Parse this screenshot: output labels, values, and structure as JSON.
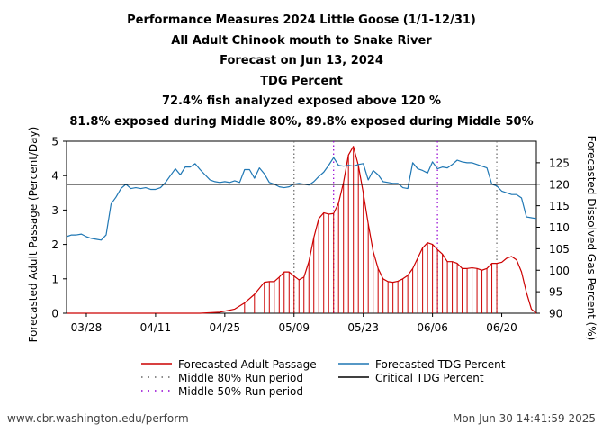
{
  "titles": [
    "Performance Measures 2024 Little Goose (1/1-12/31)",
    "All Adult Chinook mouth to Snake River",
    "Forecast on Jun 13, 2024",
    "TDG Percent",
    "72.4% fish analyzed exposed above 120 %",
    "81.8% exposed during Middle 80%, 89.8% exposed during Middle 50%"
  ],
  "footer": {
    "left": "www.cbr.washington.edu/perform",
    "right": "Mon Jun 30 14:41:59 2025"
  },
  "chart_data": {
    "type": "line",
    "date_range": [
      "2024-03-24",
      "2024-06-27"
    ],
    "x_ticks": [
      {
        "date": "2024-03-28",
        "label": "03/28"
      },
      {
        "date": "2024-04-11",
        "label": "04/11"
      },
      {
        "date": "2024-04-25",
        "label": "04/25"
      },
      {
        "date": "2024-05-09",
        "label": "05/09"
      },
      {
        "date": "2024-05-23",
        "label": "05/23"
      },
      {
        "date": "2024-06-06",
        "label": "06/06"
      },
      {
        "date": "2024-06-20",
        "label": "06/20"
      }
    ],
    "y_left": {
      "label": "Forecasted Adult Passage (Percent/Day)",
      "ylim": [
        0,
        5
      ],
      "ticks": [
        0,
        1,
        2,
        3,
        4,
        5
      ]
    },
    "y_right": {
      "label": "Forecasted Dissolved Gas Percent (%)",
      "ylim": [
        90,
        130
      ],
      "ticks": [
        90,
        95,
        100,
        105,
        110,
        115,
        120,
        125
      ]
    },
    "critical_tdg": 120,
    "middle_80_dates": [
      "2024-05-09",
      "2024-06-19"
    ],
    "middle_50_dates": [
      "2024-05-17",
      "2024-06-07"
    ],
    "series": [
      {
        "name": "Forecasted Adult Passage",
        "axis": "left",
        "color": "#cc0000",
        "points": [
          [
            "2024-03-24",
            0
          ],
          [
            "2024-04-20",
            0
          ],
          [
            "2024-04-24",
            0.03
          ],
          [
            "2024-04-27",
            0.12
          ],
          [
            "2024-04-29",
            0.3
          ],
          [
            "2024-05-01",
            0.55
          ],
          [
            "2024-05-03",
            0.9
          ],
          [
            "2024-05-04",
            0.92
          ],
          [
            "2024-05-05",
            0.92
          ],
          [
            "2024-05-06",
            1.05
          ],
          [
            "2024-05-07",
            1.2
          ],
          [
            "2024-05-08",
            1.2
          ],
          [
            "2024-05-09",
            1.08
          ],
          [
            "2024-05-10",
            0.97
          ],
          [
            "2024-05-11",
            1.05
          ],
          [
            "2024-05-12",
            1.5
          ],
          [
            "2024-05-13",
            2.2
          ],
          [
            "2024-05-14",
            2.75
          ],
          [
            "2024-05-15",
            2.92
          ],
          [
            "2024-05-16",
            2.88
          ],
          [
            "2024-05-17",
            2.9
          ],
          [
            "2024-05-18",
            3.2
          ],
          [
            "2024-05-19",
            3.8
          ],
          [
            "2024-05-20",
            4.6
          ],
          [
            "2024-05-21",
            4.85
          ],
          [
            "2024-05-22",
            4.3
          ],
          [
            "2024-05-23",
            3.5
          ],
          [
            "2024-05-24",
            2.6
          ],
          [
            "2024-05-25",
            1.8
          ],
          [
            "2024-05-26",
            1.3
          ],
          [
            "2024-05-27",
            1.0
          ],
          [
            "2024-05-28",
            0.92
          ],
          [
            "2024-05-29",
            0.9
          ],
          [
            "2024-05-30",
            0.93
          ],
          [
            "2024-05-31",
            1.0
          ],
          [
            "2024-06-01",
            1.1
          ],
          [
            "2024-06-02",
            1.3
          ],
          [
            "2024-06-03",
            1.6
          ],
          [
            "2024-06-04",
            1.9
          ],
          [
            "2024-06-05",
            2.05
          ],
          [
            "2024-06-06",
            2.0
          ],
          [
            "2024-06-07",
            1.85
          ],
          [
            "2024-06-08",
            1.72
          ],
          [
            "2024-06-09",
            1.5
          ],
          [
            "2024-06-10",
            1.5
          ],
          [
            "2024-06-11",
            1.45
          ],
          [
            "2024-06-12",
            1.3
          ],
          [
            "2024-06-13",
            1.3
          ],
          [
            "2024-06-14",
            1.32
          ],
          [
            "2024-06-15",
            1.3
          ],
          [
            "2024-06-16",
            1.25
          ],
          [
            "2024-06-17",
            1.3
          ],
          [
            "2024-06-18",
            1.45
          ],
          [
            "2024-06-19",
            1.45
          ],
          [
            "2024-06-20",
            1.48
          ],
          [
            "2024-06-21",
            1.6
          ],
          [
            "2024-06-22",
            1.65
          ],
          [
            "2024-06-23",
            1.55
          ],
          [
            "2024-06-24",
            1.2
          ],
          [
            "2024-06-25",
            0.6
          ],
          [
            "2024-06-26",
            0.12
          ],
          [
            "2024-06-27",
            0.0
          ]
        ]
      },
      {
        "name": "Forecasted TDG Percent",
        "axis": "right",
        "color": "#1f77b4",
        "points": [
          [
            "2024-03-24",
            107.8
          ],
          [
            "2024-03-25",
            108.2
          ],
          [
            "2024-03-26",
            108.2
          ],
          [
            "2024-03-27",
            108.4
          ],
          [
            "2024-03-28",
            107.8
          ],
          [
            "2024-03-29",
            107.4
          ],
          [
            "2024-03-30",
            107.2
          ],
          [
            "2024-03-31",
            107.0
          ],
          [
            "2024-04-01",
            108.2
          ],
          [
            "2024-04-02",
            115.4
          ],
          [
            "2024-04-03",
            117.0
          ],
          [
            "2024-04-04",
            119.0
          ],
          [
            "2024-04-05",
            120.0
          ],
          [
            "2024-04-06",
            119.0
          ],
          [
            "2024-04-07",
            119.2
          ],
          [
            "2024-04-08",
            119.0
          ],
          [
            "2024-04-09",
            119.2
          ],
          [
            "2024-04-10",
            118.8
          ],
          [
            "2024-04-11",
            118.8
          ],
          [
            "2024-04-12",
            119.2
          ],
          [
            "2024-04-13",
            120.4
          ],
          [
            "2024-04-14",
            122.0
          ],
          [
            "2024-04-15",
            123.6
          ],
          [
            "2024-04-16",
            122.2
          ],
          [
            "2024-04-17",
            124.0
          ],
          [
            "2024-04-18",
            124.0
          ],
          [
            "2024-04-19",
            124.8
          ],
          [
            "2024-04-20",
            123.4
          ],
          [
            "2024-04-21",
            122.2
          ],
          [
            "2024-04-22",
            121.0
          ],
          [
            "2024-04-23",
            120.6
          ],
          [
            "2024-04-24",
            120.4
          ],
          [
            "2024-04-25",
            120.6
          ],
          [
            "2024-04-26",
            120.4
          ],
          [
            "2024-04-27",
            120.8
          ],
          [
            "2024-04-28",
            120.4
          ],
          [
            "2024-04-29",
            123.4
          ],
          [
            "2024-04-30",
            123.4
          ],
          [
            "2024-05-01",
            121.4
          ],
          [
            "2024-05-02",
            123.8
          ],
          [
            "2024-05-03",
            122.4
          ],
          [
            "2024-05-04",
            120.4
          ],
          [
            "2024-05-05",
            120.0
          ],
          [
            "2024-05-06",
            119.4
          ],
          [
            "2024-05-07",
            119.2
          ],
          [
            "2024-05-08",
            119.4
          ],
          [
            "2024-05-09",
            120.0
          ],
          [
            "2024-05-10",
            120.2
          ],
          [
            "2024-05-11",
            120.0
          ],
          [
            "2024-05-12",
            119.8
          ],
          [
            "2024-05-13",
            120.6
          ],
          [
            "2024-05-14",
            121.8
          ],
          [
            "2024-05-15",
            122.8
          ],
          [
            "2024-05-16",
            124.4
          ],
          [
            "2024-05-17",
            126.2
          ],
          [
            "2024-05-18",
            124.4
          ],
          [
            "2024-05-19",
            124.2
          ],
          [
            "2024-05-20",
            124.4
          ],
          [
            "2024-05-21",
            124.2
          ],
          [
            "2024-05-22",
            124.6
          ],
          [
            "2024-05-23",
            124.8
          ],
          [
            "2024-05-24",
            121.0
          ],
          [
            "2024-05-25",
            123.2
          ],
          [
            "2024-05-26",
            122.2
          ],
          [
            "2024-05-27",
            120.6
          ],
          [
            "2024-05-28",
            120.4
          ],
          [
            "2024-05-29",
            120.2
          ],
          [
            "2024-05-30",
            120.2
          ],
          [
            "2024-05-31",
            119.2
          ],
          [
            "2024-06-01",
            119.0
          ],
          [
            "2024-06-02",
            125.0
          ],
          [
            "2024-06-03",
            123.6
          ],
          [
            "2024-06-04",
            123.2
          ],
          [
            "2024-06-05",
            122.6
          ],
          [
            "2024-06-06",
            125.2
          ],
          [
            "2024-06-07",
            123.6
          ],
          [
            "2024-06-08",
            124.0
          ],
          [
            "2024-06-09",
            123.8
          ],
          [
            "2024-06-10",
            124.6
          ],
          [
            "2024-06-11",
            125.6
          ],
          [
            "2024-06-12",
            125.2
          ],
          [
            "2024-06-13",
            125.0
          ],
          [
            "2024-06-14",
            125.0
          ],
          [
            "2024-06-15",
            124.6
          ],
          [
            "2024-06-16",
            124.2
          ],
          [
            "2024-06-17",
            123.8
          ],
          [
            "2024-06-18",
            120.0
          ],
          [
            "2024-06-19",
            119.6
          ],
          [
            "2024-06-20",
            118.4
          ],
          [
            "2024-06-21",
            118.0
          ],
          [
            "2024-06-22",
            117.6
          ],
          [
            "2024-06-23",
            117.6
          ],
          [
            "2024-06-24",
            116.8
          ],
          [
            "2024-06-25",
            112.4
          ],
          [
            "2024-06-26",
            112.2
          ],
          [
            "2024-06-27",
            112.0
          ]
        ]
      }
    ],
    "legend": {
      "placement": "bottom",
      "items": [
        {
          "label": "Forecasted Adult Passage",
          "style": "line",
          "color": "#cc0000"
        },
        {
          "label": "Forecasted TDG Percent",
          "style": "line",
          "color": "#1f77b4"
        },
        {
          "label": "Middle 80% Run period",
          "style": "dotted",
          "color": "#666666"
        },
        {
          "label": "Critical TDG Percent",
          "style": "line",
          "color": "#000000"
        },
        {
          "label": "Middle 50% Run period",
          "style": "dotted",
          "color": "#9400d3"
        }
      ]
    }
  }
}
